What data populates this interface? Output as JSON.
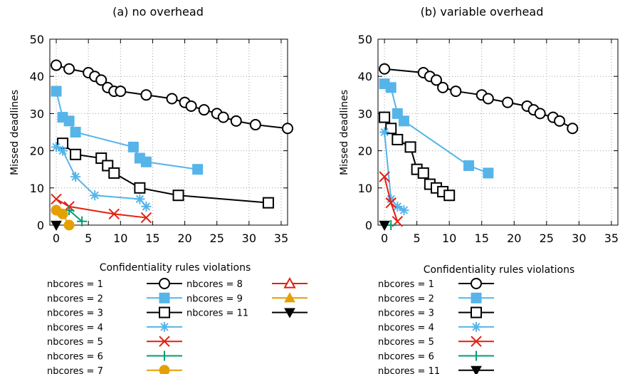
{
  "chart_data": [
    {
      "type": "line",
      "title": "(a) no overhead",
      "xlabel": "Confidentiality rules violations",
      "ylabel": "Missed deadlines",
      "xlim": [
        -1,
        36
      ],
      "ylim": [
        0,
        50
      ],
      "xticks": [
        0,
        5,
        10,
        15,
        20,
        25,
        30,
        35
      ],
      "yticks": [
        0,
        10,
        20,
        30,
        40,
        50
      ],
      "grid": true,
      "legend_placement": "below",
      "series": [
        {
          "name": "nbcores = 1",
          "color": "#000000",
          "marker": "circle-open",
          "x": [
            0,
            2,
            5,
            6,
            7,
            8,
            9,
            10,
            14,
            18,
            20,
            21,
            23,
            25,
            26,
            28,
            31,
            36
          ],
          "y": [
            43,
            42,
            41,
            40,
            39,
            37,
            36,
            36,
            35,
            34,
            33,
            32,
            31,
            30,
            29,
            28,
            27,
            26
          ]
        },
        {
          "name": "nbcores = 2",
          "color": "#56b4e9",
          "marker": "square-filled",
          "x": [
            0,
            1,
            2,
            3,
            12,
            13,
            14,
            22
          ],
          "y": [
            36,
            29,
            28,
            25,
            21,
            18,
            17,
            15
          ]
        },
        {
          "name": "nbcores = 3",
          "color": "#000000",
          "marker": "square-open",
          "x": [
            1,
            3,
            7,
            8,
            9,
            13,
            19,
            33
          ],
          "y": [
            22,
            19,
            18,
            16,
            14,
            10,
            8,
            6
          ]
        },
        {
          "name": "nbcores = 4",
          "color": "#56b4e9",
          "marker": "asterisk",
          "x": [
            0,
            1,
            3,
            6,
            13,
            14
          ],
          "y": [
            21,
            20,
            13,
            8,
            7,
            5
          ]
        },
        {
          "name": "nbcores = 5",
          "color": "#e51e10",
          "marker": "x",
          "x": [
            0,
            2,
            9,
            14
          ],
          "y": [
            7,
            5,
            3,
            2
          ]
        },
        {
          "name": "nbcores = 6",
          "color": "#009e73",
          "marker": "plus",
          "x": [
            2,
            4
          ],
          "y": [
            4,
            1
          ]
        },
        {
          "name": "nbcores = 7",
          "color": "#e69f00",
          "marker": "circle-filled",
          "x": [
            0,
            1,
            2
          ],
          "y": [
            4,
            3,
            0
          ]
        },
        {
          "name": "nbcores = 8",
          "color": "#e51e10",
          "marker": "triangle-up-open",
          "x": [],
          "y": []
        },
        {
          "name": "nbcores = 9",
          "color": "#e69f00",
          "marker": "triangle-up-filled",
          "x": [],
          "y": []
        },
        {
          "name": "nbcores = 11",
          "color": "#000000",
          "marker": "triangle-down-filled",
          "x": [
            0
          ],
          "y": [
            0
          ]
        }
      ]
    },
    {
      "type": "line",
      "title": "(b) variable overhead",
      "xlabel": "Confidentiality rules violations",
      "ylabel": "Missed deadlines",
      "xlim": [
        -1,
        36
      ],
      "ylim": [
        0,
        50
      ],
      "xticks": [
        0,
        5,
        10,
        15,
        20,
        25,
        30,
        35
      ],
      "yticks": [
        0,
        10,
        20,
        30,
        40,
        50
      ],
      "grid": true,
      "legend_placement": "below",
      "series": [
        {
          "name": "nbcores = 1",
          "color": "#000000",
          "marker": "circle-open",
          "x": [
            0,
            6,
            7,
            8,
            9,
            11,
            15,
            16,
            19,
            22,
            23,
            24,
            26,
            27,
            29
          ],
          "y": [
            42,
            41,
            40,
            39,
            37,
            36,
            35,
            34,
            33,
            32,
            31,
            30,
            29,
            28,
            26
          ]
        },
        {
          "name": "nbcores = 2",
          "color": "#56b4e9",
          "marker": "square-filled",
          "x": [
            0,
            1,
            2,
            3,
            13,
            16
          ],
          "y": [
            38,
            37,
            30,
            28,
            16,
            14
          ]
        },
        {
          "name": "nbcores = 3",
          "color": "#000000",
          "marker": "square-open",
          "x": [
            0,
            1,
            2,
            4,
            5,
            6,
            7,
            8,
            9,
            10
          ],
          "y": [
            29,
            26,
            23,
            21,
            15,
            14,
            11,
            10,
            9,
            8
          ]
        },
        {
          "name": "nbcores = 4",
          "color": "#56b4e9",
          "marker": "asterisk",
          "x": [
            0,
            1,
            2,
            3
          ],
          "y": [
            25,
            7,
            5,
            4
          ]
        },
        {
          "name": "nbcores = 5",
          "color": "#e51e10",
          "marker": "x",
          "x": [
            0,
            1,
            2
          ],
          "y": [
            13,
            6,
            1
          ]
        },
        {
          "name": "nbcores = 6",
          "color": "#009e73",
          "marker": "plus",
          "x": [
            1
          ],
          "y": [
            0
          ]
        },
        {
          "name": "nbcores = 11",
          "color": "#000000",
          "marker": "triangle-down-filled",
          "x": [
            0
          ],
          "y": [
            0
          ]
        }
      ]
    }
  ]
}
